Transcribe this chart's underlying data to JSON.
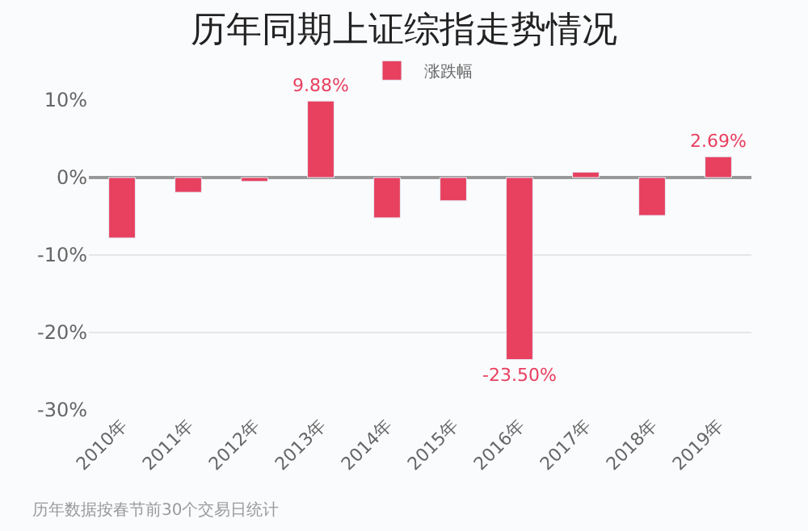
{
  "chart_data": {
    "type": "bar",
    "title": "历年同期上证综指走势情况",
    "categories": [
      "2010年",
      "2011年",
      "2012年",
      "2013年",
      "2014年",
      "2015年",
      "2016年",
      "2017年",
      "2018年",
      "2019年"
    ],
    "series": [
      {
        "name": "涨跌幅",
        "color": "#e8405f",
        "values": [
          -7.8,
          -1.9,
          -0.5,
          9.88,
          -5.2,
          -3.0,
          -23.5,
          0.7,
          -4.9,
          2.69
        ],
        "value_labels": [
          null,
          null,
          null,
          "9.88%",
          null,
          null,
          "-23.50%",
          null,
          null,
          "2.69%"
        ]
      }
    ],
    "ylim": [
      -30,
      10
    ],
    "yticks": [
      {
        "value": -30,
        "label": "-30%"
      },
      {
        "value": -20,
        "label": "-20%"
      },
      {
        "value": -10,
        "label": "-10%"
      },
      {
        "value": 0,
        "label": "0%"
      },
      {
        "value": 10,
        "label": "10%"
      }
    ],
    "grid": "y",
    "legend": "top",
    "annotations": [
      "历年数据按春节前30个交易日统计"
    ]
  }
}
